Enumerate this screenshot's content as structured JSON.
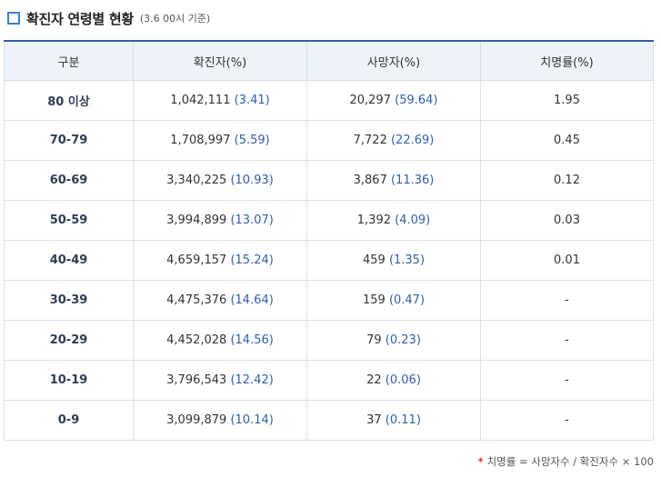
{
  "heading": {
    "title": "확진자 연령별 현황",
    "note": "(3.6 00시 기준)"
  },
  "table": {
    "headers": [
      "구분",
      "확진자(%)",
      "사망자(%)",
      "치명률(%)"
    ],
    "rows": [
      {
        "age": "80 이상",
        "cases": "1,042,111",
        "cases_pct": "(3.41)",
        "deaths": "20,297",
        "deaths_pct": "(59.64)",
        "fatality": "1.95"
      },
      {
        "age": "70-79",
        "cases": "1,708,997",
        "cases_pct": "(5.59)",
        "deaths": "7,722",
        "deaths_pct": "(22.69)",
        "fatality": "0.45"
      },
      {
        "age": "60-69",
        "cases": "3,340,225",
        "cases_pct": "(10.93)",
        "deaths": "3,867",
        "deaths_pct": "(11.36)",
        "fatality": "0.12"
      },
      {
        "age": "50-59",
        "cases": "3,994,899",
        "cases_pct": "(13.07)",
        "deaths": "1,392",
        "deaths_pct": "(4.09)",
        "fatality": "0.03"
      },
      {
        "age": "40-49",
        "cases": "4,659,157",
        "cases_pct": "(15.24)",
        "deaths": "459",
        "deaths_pct": "(1.35)",
        "fatality": "0.01"
      },
      {
        "age": "30-39",
        "cases": "4,475,376",
        "cases_pct": "(14.64)",
        "deaths": "159",
        "deaths_pct": "(0.47)",
        "fatality": "-"
      },
      {
        "age": "20-29",
        "cases": "4,452,028",
        "cases_pct": "(14.56)",
        "deaths": "79",
        "deaths_pct": "(0.23)",
        "fatality": "-"
      },
      {
        "age": "10-19",
        "cases": "3,796,543",
        "cases_pct": "(12.42)",
        "deaths": "22",
        "deaths_pct": "(0.06)",
        "fatality": "-"
      },
      {
        "age": "0-9",
        "cases": "3,099,879",
        "cases_pct": "(10.14)",
        "deaths": "37",
        "deaths_pct": "(0.11)",
        "fatality": "-"
      }
    ]
  },
  "footnote": {
    "mark": "*",
    "text": "치명률 = 사망자수 / 확진자수 × 100"
  },
  "colors": {
    "accent": "#2f5fa7",
    "header_bg": "#eef3fa",
    "footnote_mark": "#e0312f"
  },
  "icons": {
    "heading": "square-bullet-icon"
  }
}
